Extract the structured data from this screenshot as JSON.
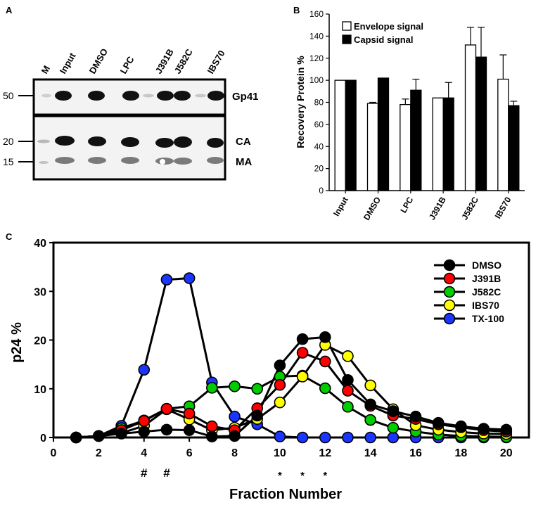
{
  "panel_a": {
    "label": "A",
    "lane_labels": [
      "M",
      "Input",
      "DMSO",
      "LPC",
      "J391B",
      "J582C",
      "IBS70"
    ],
    "mw_labels": [
      "50",
      "20",
      "15"
    ],
    "band_labels": [
      "Gp41",
      "CA",
      "MA"
    ]
  },
  "chart_data": [
    {
      "panel": "B",
      "type": "bar",
      "title": "",
      "xlabel": "",
      "ylabel": "Recovery Protein %",
      "ylim": [
        0,
        160
      ],
      "yticks": [
        "0",
        "20",
        "40",
        "60",
        "80",
        "100",
        "120",
        "140",
        "160"
      ],
      "categories": [
        "Input",
        "DMSO",
        "LPC",
        "J391B",
        "J582C",
        "IBS70"
      ],
      "series": [
        {
          "name": "Envelope signal",
          "fill": "#ffffff",
          "values": [
            100,
            79,
            78,
            84,
            132,
            101
          ],
          "errors": [
            0,
            1,
            5,
            0,
            16,
            22
          ]
        },
        {
          "name": "Capsid signal",
          "fill": "#000000",
          "values": [
            100,
            102,
            91,
            84,
            121,
            77
          ],
          "errors": [
            0,
            0,
            10,
            14,
            27,
            4
          ]
        }
      ],
      "legend_position": "top-left"
    },
    {
      "panel": "C",
      "type": "line",
      "title": "",
      "xlabel": "Fraction Number",
      "ylabel": "p24 %",
      "xlim": [
        0,
        21
      ],
      "ylim": [
        0,
        40
      ],
      "xticks": [
        "0",
        "2",
        "4",
        "6",
        "8",
        "10",
        "12",
        "14",
        "16",
        "18",
        "20"
      ],
      "yticks": [
        "0",
        "10",
        "20",
        "30",
        "40"
      ],
      "x": [
        1,
        2,
        3,
        4,
        5,
        6,
        7,
        8,
        9,
        10,
        11,
        12,
        13,
        14,
        15,
        16,
        17,
        18,
        19,
        20
      ],
      "series": [
        {
          "name": "DMSO",
          "color": "#000000",
          "values": [
            0,
            0.3,
            0.8,
            1.2,
            1.6,
            1.5,
            0.2,
            0.3,
            4.5,
            14.8,
            20.2,
            20.6,
            11.8,
            6.8,
            5.4,
            4.3,
            3.0,
            2.3,
            1.8,
            1.6
          ]
        },
        {
          "name": "J391B",
          "color": "#ff0000",
          "values": [
            0,
            0.3,
            1.5,
            3.4,
            5.9,
            4.9,
            2.3,
            1.5,
            6.0,
            10.8,
            17.4,
            15.6,
            9.6,
            6.5,
            4.5,
            3.8,
            2.7,
            2.1,
            1.5,
            1.2
          ]
        },
        {
          "name": "J582C",
          "color": "#00cc00",
          "values": [
            0,
            0.3,
            1.9,
            3.5,
            5.9,
            6.4,
            10.2,
            10.5,
            10.0,
            12.5,
            12.7,
            10.1,
            6.3,
            3.6,
            2.0,
            1.2,
            0.6,
            0.3,
            0.2,
            0.1
          ]
        },
        {
          "name": "IBS70",
          "color": "#ffff00",
          "values": [
            0,
            0.3,
            0.9,
            2.4,
            5.8,
            3.7,
            1.5,
            2.0,
            3.8,
            7.2,
            12.5,
            19.0,
            16.7,
            10.7,
            5.8,
            2.5,
            1.6,
            1.1,
            0.8,
            0.7
          ]
        },
        {
          "name": "TX-100",
          "color": "#1a35ff",
          "values": [
            0,
            0.3,
            2.4,
            13.9,
            32.4,
            32.7,
            11.3,
            4.3,
            2.7,
            0.2,
            0,
            0,
            0,
            0,
            0,
            0,
            0,
            0,
            0,
            0
          ]
        }
      ],
      "annotations": [
        {
          "x": 4,
          "text": "#"
        },
        {
          "x": 5,
          "text": "#"
        },
        {
          "x": 10,
          "text": "*"
        },
        {
          "x": 11,
          "text": "*"
        },
        {
          "x": 12,
          "text": "*"
        }
      ],
      "legend_position": "top-right"
    }
  ],
  "panel_labels": {
    "b": "B",
    "c": "C"
  }
}
